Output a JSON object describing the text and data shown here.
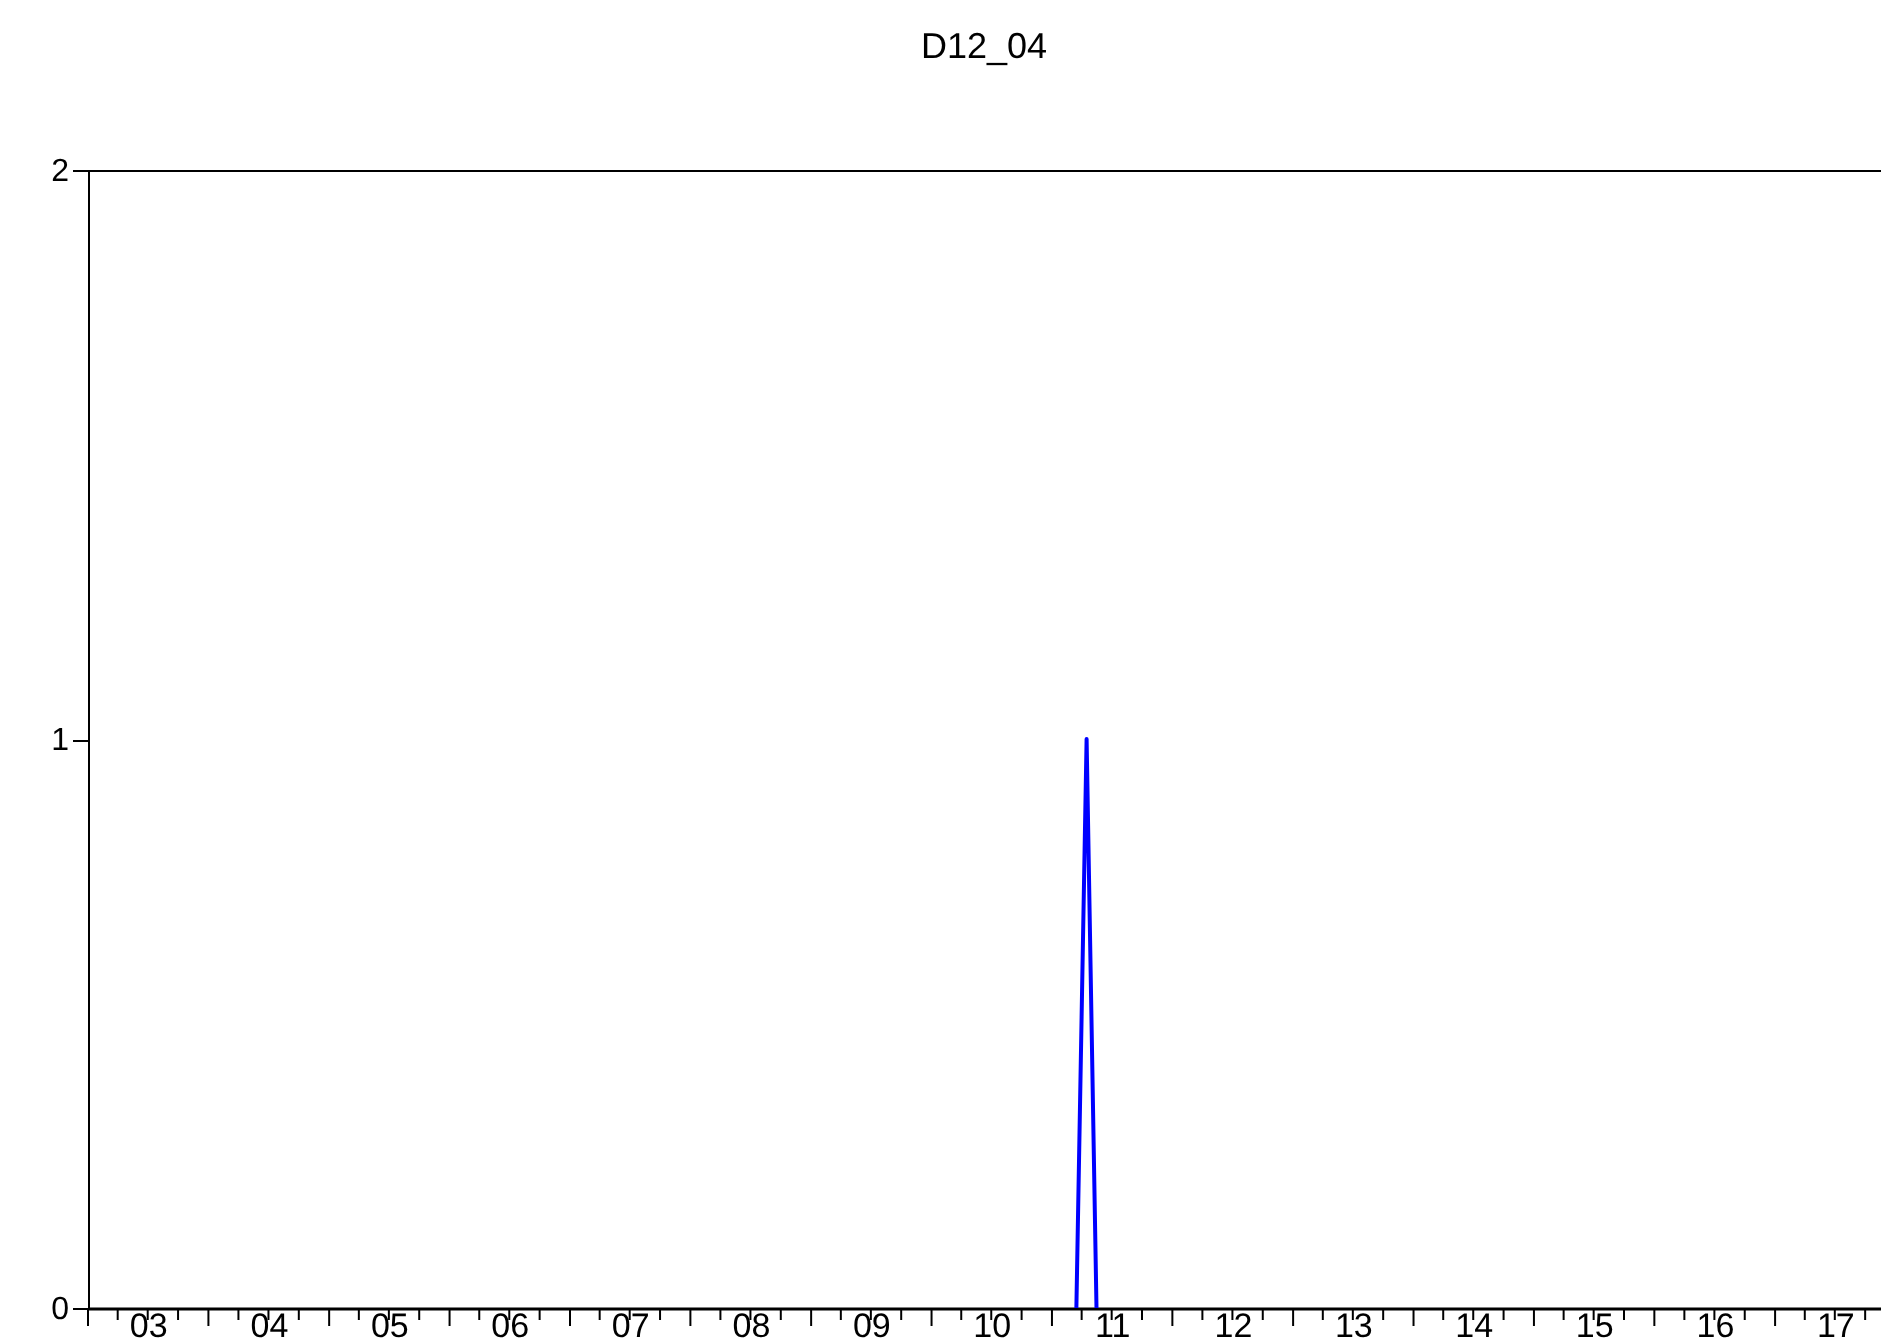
{
  "chart_data": {
    "type": "line",
    "title": "D12_04",
    "x": [
      "2011-03-16",
      "2011-04-16",
      "2011-05-16"
    ],
    "series": [
      {
        "color": "#0000ff",
        "values": [
          0,
          1,
          0
        ]
      }
    ],
    "xlim": [
      "2003-01-01",
      "2017-11-15"
    ],
    "xticks": [
      {
        "value": "2003-07-01",
        "label": "03"
      },
      {
        "value": "2004-07-01",
        "label": "04"
      },
      {
        "value": "2005-07-01",
        "label": "05"
      },
      {
        "value": "2006-07-01",
        "label": "06"
      },
      {
        "value": "2007-07-01",
        "label": "07"
      },
      {
        "value": "2008-07-01",
        "label": "08"
      },
      {
        "value": "2009-07-01",
        "label": "09"
      },
      {
        "value": "2010-07-01",
        "label": "10"
      },
      {
        "value": "2011-07-01",
        "label": "11"
      },
      {
        "value": "2012-07-01",
        "label": "12"
      },
      {
        "value": "2013-07-01",
        "label": "13"
      },
      {
        "value": "2014-07-01",
        "label": "14"
      },
      {
        "value": "2015-07-01",
        "label": "15"
      },
      {
        "value": "2016-07-01",
        "label": "16"
      },
      {
        "value": "2017-07-01",
        "label": "17"
      },
      {
        "value": "2003-01-01",
        "label": null
      },
      {
        "value": "2003-04-01",
        "label": null
      },
      {
        "value": "2003-07-01",
        "label": null
      },
      {
        "value": "2003-10-01",
        "label": null
      },
      {
        "value": "2004-01-01",
        "label": null
      },
      {
        "value": "2004-04-01",
        "label": null
      },
      {
        "value": "2004-07-01",
        "label": null
      },
      {
        "value": "2004-10-01",
        "label": null
      },
      {
        "value": "2005-01-01",
        "label": null
      },
      {
        "value": "2005-04-01",
        "label": null
      },
      {
        "value": "2005-07-01",
        "label": null
      },
      {
        "value": "2005-10-01",
        "label": null
      },
      {
        "value": "2006-01-01",
        "label": null
      },
      {
        "value": "2006-04-01",
        "label": null
      },
      {
        "value": "2006-07-01",
        "label": null
      },
      {
        "value": "2006-10-01",
        "label": null
      },
      {
        "value": "2007-01-01",
        "label": null
      },
      {
        "value": "2007-04-01",
        "label": null
      },
      {
        "value": "2007-07-01",
        "label": null
      },
      {
        "value": "2007-10-01",
        "label": null
      },
      {
        "value": "2008-01-01",
        "label": null
      },
      {
        "value": "2008-04-01",
        "label": null
      },
      {
        "value": "2008-07-01",
        "label": null
      },
      {
        "value": "2008-10-01",
        "label": null
      },
      {
        "value": "2009-01-01",
        "label": null
      },
      {
        "value": "2009-04-01",
        "label": null
      },
      {
        "value": "2009-07-01",
        "label": null
      },
      {
        "value": "2009-10-01",
        "label": null
      },
      {
        "value": "2010-01-01",
        "label": null
      },
      {
        "value": "2010-04-01",
        "label": null
      },
      {
        "value": "2010-07-01",
        "label": null
      },
      {
        "value": "2010-10-01",
        "label": null
      },
      {
        "value": "2011-01-01",
        "label": null
      },
      {
        "value": "2011-04-01",
        "label": null
      },
      {
        "value": "2011-07-01",
        "label": null
      },
      {
        "value": "2011-10-01",
        "label": null
      },
      {
        "value": "2012-01-01",
        "label": null
      },
      {
        "value": "2012-04-01",
        "label": null
      },
      {
        "value": "2012-07-01",
        "label": null
      },
      {
        "value": "2012-10-01",
        "label": null
      },
      {
        "value": "2013-01-01",
        "label": null
      },
      {
        "value": "2013-04-01",
        "label": null
      },
      {
        "value": "2013-07-01",
        "label": null
      },
      {
        "value": "2013-10-01",
        "label": null
      },
      {
        "value": "2014-01-01",
        "label": null
      },
      {
        "value": "2014-04-01",
        "label": null
      },
      {
        "value": "2014-07-01",
        "label": null
      },
      {
        "value": "2014-10-01",
        "label": null
      },
      {
        "value": "2015-01-01",
        "label": null
      },
      {
        "value": "2015-04-01",
        "label": null
      },
      {
        "value": "2015-07-01",
        "label": null
      },
      {
        "value": "2015-10-01",
        "label": null
      },
      {
        "value": "2016-01-01",
        "label": null
      },
      {
        "value": "2016-04-01",
        "label": null
      },
      {
        "value": "2016-07-01",
        "label": null
      },
      {
        "value": "2016-10-01",
        "label": null
      },
      {
        "value": "2017-01-01",
        "label": null
      },
      {
        "value": "2017-04-01",
        "label": null
      },
      {
        "value": "2017-07-01",
        "label": null
      },
      {
        "value": "2017-10-01",
        "label": null
      }
    ],
    "ylim": [
      0,
      2
    ],
    "yticks": [
      0,
      1,
      2
    ]
  }
}
